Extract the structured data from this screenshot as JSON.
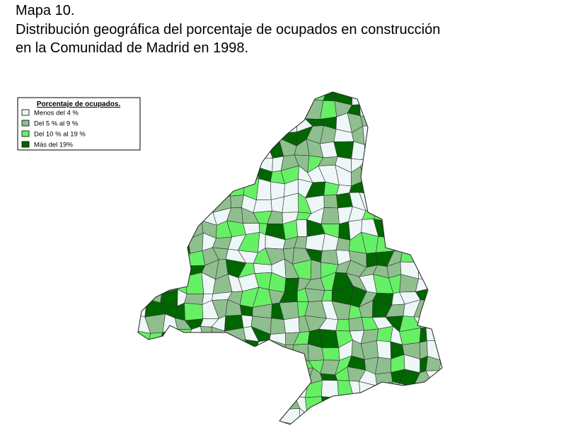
{
  "title": {
    "line1": "Mapa 10.",
    "line2": "Distribución geográfica del porcentaje de ocupados en construcción",
    "line3": "en la Comunidad de Madrid en 1998."
  },
  "legend": {
    "title": "Porcentaje de ocupados.",
    "items": [
      {
        "label": "Menos del 4 %",
        "color": "#eef7f7"
      },
      {
        "label": "Del 5 % al 9 %",
        "color": "#8fbf8f"
      },
      {
        "label": "Del 10 % al 19 %",
        "color": "#66f066"
      },
      {
        "label": "Más del 19%",
        "color": "#006600"
      }
    ]
  }
}
